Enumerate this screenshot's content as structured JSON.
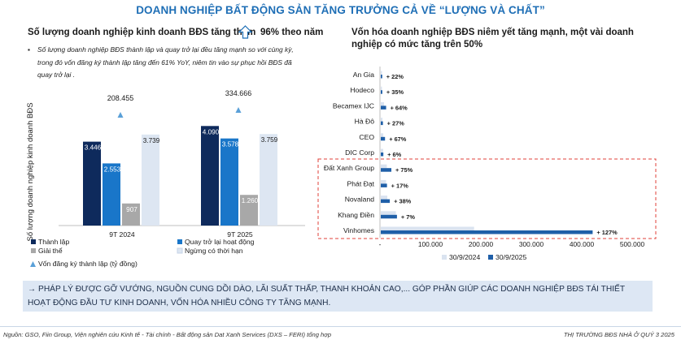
{
  "title": "DOANH NGHIỆP BẤT ĐỘNG SẢN TĂNG TRƯỞNG CẢ VỀ “LƯỢNG VÀ CHẤT”",
  "left_panel": {
    "heading": "Số lượng doanh nghiệp kinh doanh BĐS tăng thêm",
    "heading_value": "96% theo năm",
    "bullet_symbol": "▪",
    "bullet": "Số lượng doanh nghiệp BĐS thành lập và quay trở lại đều tăng mạnh so với cùng kỳ, trong đó vốn đăng ký thành lập tăng đến 61% YoY, niêm tin vào sự phục hồi BĐS đã quay trở lại ."
  },
  "right_panel": {
    "heading": "Vốn hóa doanh nghiệp BĐS niêm yết tăng mạnh, một vài doanh nghiệp có mức tăng trên 50%"
  },
  "colors": {
    "accent": "#1f6fb6",
    "thanh_lap": "#0e2a5c",
    "quay_tro_lai": "#1976c9",
    "giai_the": "#a8a8a8",
    "ngung": "#dde6f2",
    "hbar_2024": "#dae3f0",
    "hbar_2025": "#1f5fa8",
    "dashed_box": "#e0403a"
  },
  "chart_data": [
    {
      "type": "bar",
      "title": "",
      "ylabel": "Số lượng doanh nghiệp kinh doanh BĐS",
      "xlabel": "",
      "categories": [
        "9T 2024",
        "9T 2025"
      ],
      "series": [
        {
          "name": "Thành lập",
          "values": [
            3.446,
            4.09
          ],
          "labels": [
            "3.446",
            "4.090"
          ]
        },
        {
          "name": "Quay trở lại hoạt động",
          "values": [
            2.553,
            3.578
          ],
          "labels": [
            "2.553",
            "3.578"
          ]
        },
        {
          "name": "Giải thể",
          "values": [
            0.907,
            1.26
          ],
          "labels": [
            "907",
            "1.260"
          ]
        },
        {
          "name": "Ngừng có thời hạn",
          "values": [
            3.739,
            3.759
          ],
          "labels": [
            "3.739",
            "3.759"
          ]
        }
      ],
      "line_series": {
        "name": "Vốn đăng ký thành lập (tỷ đồng)",
        "values": [
          208.455,
          334.666
        ],
        "labels": [
          "208.455",
          "334.666"
        ]
      },
      "ylim": [
        0,
        5
      ]
    },
    {
      "type": "bar",
      "orientation": "horizontal",
      "title": "",
      "categories": [
        "An Gia",
        "Hodeco",
        "Becamex IJC",
        "Hà Đô",
        "CEO",
        "DIC Corp",
        "Đất Xanh Group",
        "Phát Đạt",
        "Novaland",
        "Khang Điền",
        "Vinhomes"
      ],
      "series": [
        {
          "name": "30/9/2024",
          "values": [
            2400,
            2300,
            6500,
            3400,
            5000,
            4800,
            12000,
            10500,
            13000,
            30000,
            185000
          ]
        },
        {
          "name": "30/9/2025",
          "values": [
            2900,
            3100,
            10600,
            4300,
            8400,
            5100,
            21000,
            12300,
            17900,
            32100,
            420000
          ]
        }
      ],
      "growth_labels": [
        "+ 22%",
        "+ 35%",
        "+ 64%",
        "+ 27%",
        "+ 67%",
        "+ 6%",
        "+ 75%",
        "+ 17%",
        "+ 38%",
        "+ 7%",
        "+ 127%"
      ],
      "highlighted_categories": [
        "Đất Xanh Group",
        "Phát Đạt",
        "Novaland",
        "Khang Điền",
        "Vinhomes"
      ],
      "xlim": [
        0,
        500000
      ],
      "xticks": [
        0,
        100000,
        200000,
        300000,
        400000,
        500000
      ],
      "xtick_labels": [
        "-",
        "100.000",
        "200.000",
        "300.000",
        "400.000",
        "500.000"
      ],
      "legend": [
        "30/9/2024",
        "30/9/2025"
      ],
      "legend_position": "bottom"
    }
  ],
  "conclusion": "→ PHÁP LÝ ĐƯỢC GỠ VƯỚNG, NGUỒN CUNG DỒI DÀO, LÃI SUẤT THẤP, THANH KHOẢN CAO,... GÓP PHẦN GIÚP CÁC DOANH NGHIỆP BĐS TÁI THIẾT HOẠT ĐỘNG ĐẦU TƯ KINH DOANH, VỐN HÓA NHIỀU CÔNG TY TĂNG MẠNH.",
  "footer": {
    "source": "Nguồn: GSO, Fiin Group, Viện nghiên cứu Kinh tế - Tài chính - Bất động sản Dat Xanh Services (DXS – FERI) tổng hợp",
    "report": "THỊ TRƯỜNG BĐS NHÀ Ở QUÝ 3 2025"
  }
}
